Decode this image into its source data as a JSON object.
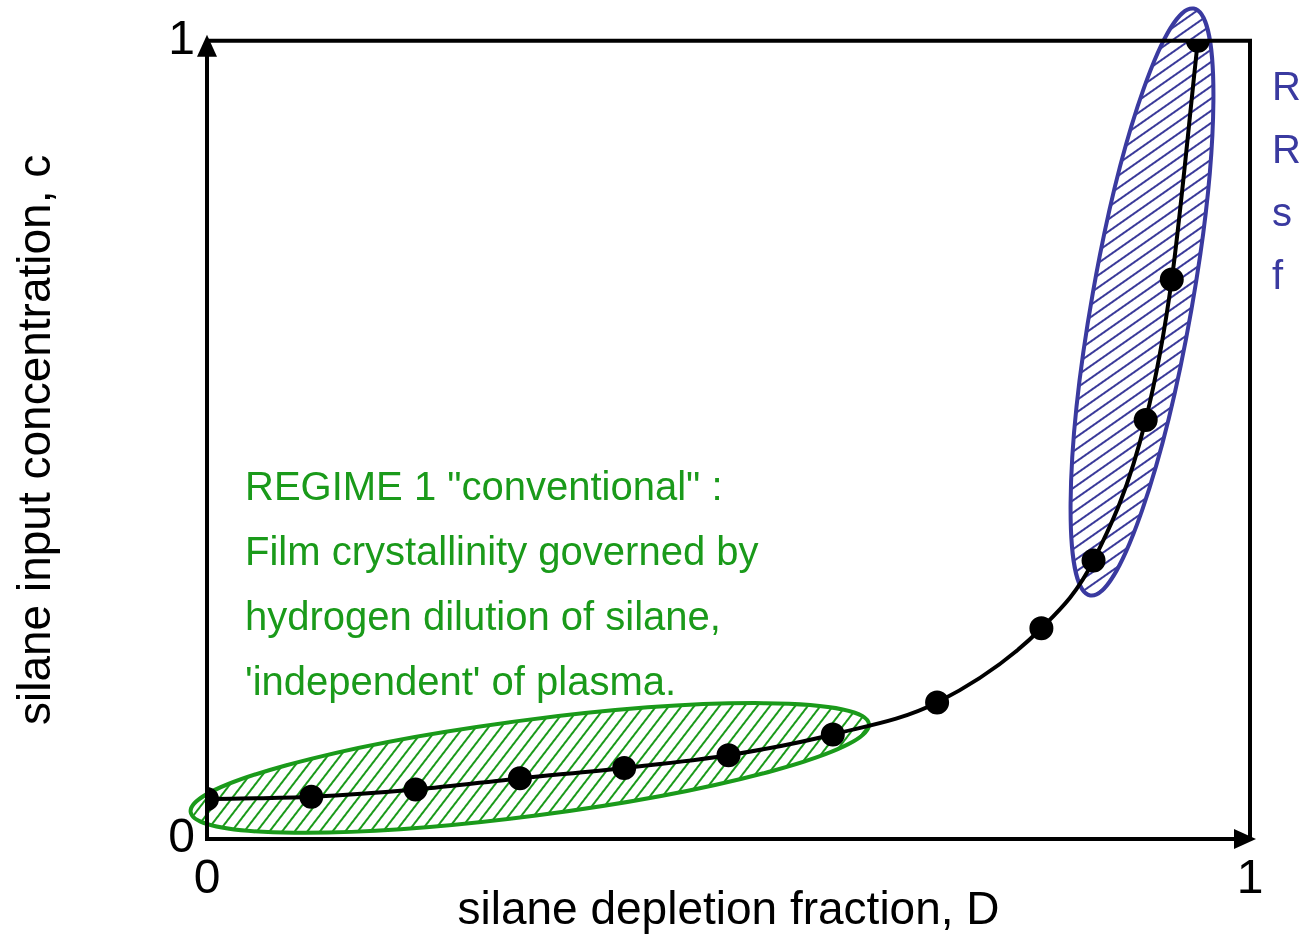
{
  "chart_data": {
    "type": "line",
    "xlabel": "silane depletion fraction, D",
    "ylabel": "silane input concentration, c",
    "x": [
      0,
      0.1,
      0.2,
      0.3,
      0.4,
      0.5,
      0.6,
      0.7,
      0.8,
      0.85,
      0.9,
      0.925,
      0.95
    ],
    "series": [
      {
        "color": "#000000",
        "values": [
          0.05,
          0.053,
          0.062,
          0.076,
          0.089,
          0.105,
          0.131,
          0.171,
          0.264,
          0.349,
          0.525,
          0.701,
          1.0
        ]
      }
    ],
    "xlim": [
      0,
      1
    ],
    "ylim": [
      0,
      1
    ],
    "xticks": [
      0,
      1
    ],
    "yticks": [
      0,
      1
    ],
    "legend": false,
    "marker": "circle",
    "line_style": "solid",
    "annotations": [
      "REGIME 1 \"conventional\" :",
      "Film crystallinity governed by",
      "hydrogen dilution of silane,",
      "'independent' of plasma.",
      "R",
      "R",
      "s",
      "f"
    ]
  }
}
